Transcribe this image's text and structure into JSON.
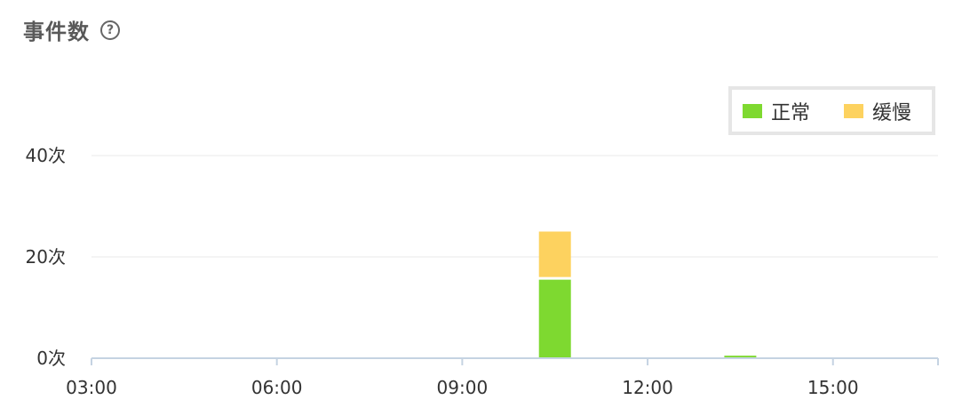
{
  "header": {
    "title": "事件数",
    "help_icon_glyph": "?"
  },
  "colors": {
    "normal": "#7ED930",
    "slow": "#FDD25F",
    "grid": "#e8e8e8",
    "axis": "#c5d3e2"
  },
  "chart_data": {
    "type": "bar",
    "stacked": true,
    "title": "事件数",
    "x_unit": "hour",
    "xlim": [
      3.0,
      16.7
    ],
    "x_ticks": [
      3,
      6,
      9,
      12,
      15
    ],
    "x_tick_labels": [
      "03:00",
      "06:00",
      "09:00",
      "12:00",
      "15:00"
    ],
    "ylim": [
      0,
      40
    ],
    "y_ticks": [
      0,
      20,
      40
    ],
    "y_tick_labels": [
      "0次",
      "20次",
      "40次"
    ],
    "grid": true,
    "legend_position": "top-right",
    "x": [
      10.5,
      13.5
    ],
    "series": [
      {
        "name": "正常",
        "color": "#7ED930",
        "values": [
          15.5,
          0.5
        ]
      },
      {
        "name": "缓慢",
        "color": "#FDD25F",
        "values": [
          9.5,
          0
        ]
      }
    ]
  }
}
